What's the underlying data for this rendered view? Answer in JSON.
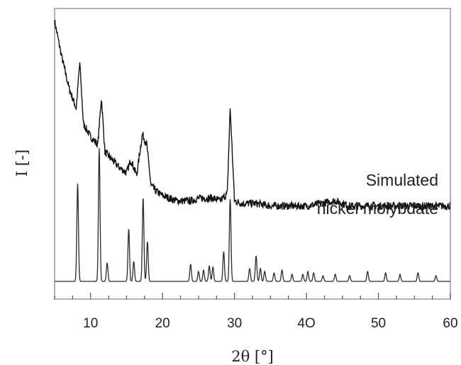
{
  "chart_data": {
    "type": "line",
    "xlabel": "2θ [°]",
    "ylabel": "I [-]",
    "xlim": [
      5,
      60
    ],
    "xticks": [
      10,
      20,
      30,
      40,
      50,
      60
    ],
    "x_tick_labels": [
      "10",
      "20",
      "30",
      "4O",
      "50",
      "60"
    ],
    "yticks_shown": false,
    "grid": false,
    "annotations": [
      {
        "text": "Simulated"
      },
      {
        "text": "nickel molybdate"
      }
    ],
    "series": [
      {
        "description": "measured pattern (upper, noisy)",
        "x": [
          5,
          6,
          7,
          8,
          8.5,
          9,
          10,
          11,
          11.5,
          12,
          13,
          14,
          15,
          15.6,
          16.4,
          17.2,
          17.8,
          18.4,
          19,
          20,
          21,
          22,
          23,
          24,
          25,
          26,
          27,
          28,
          29,
          29.4,
          30,
          31,
          33,
          35,
          37,
          40,
          44,
          46,
          50,
          55,
          60
        ],
        "y_rel": [
          1.0,
          0.86,
          0.74,
          0.66,
          0.84,
          0.6,
          0.55,
          0.52,
          0.7,
          0.49,
          0.46,
          0.43,
          0.41,
          0.46,
          0.4,
          0.56,
          0.52,
          0.36,
          0.34,
          0.32,
          0.31,
          0.3,
          0.3,
          0.3,
          0.31,
          0.31,
          0.31,
          0.3,
          0.33,
          0.66,
          0.3,
          0.29,
          0.29,
          0.28,
          0.28,
          0.28,
          0.3,
          0.28,
          0.28,
          0.28,
          0.28
        ]
      },
      {
        "name": "Simulated nickel molybdate",
        "baseline_rel": 0.0,
        "peaks": [
          {
            "x": 8.2,
            "h": 0.69
          },
          {
            "x": 11.2,
            "h": 0.94
          },
          {
            "x": 12.3,
            "h": 0.13
          },
          {
            "x": 15.3,
            "h": 0.37
          },
          {
            "x": 16.0,
            "h": 0.14
          },
          {
            "x": 17.3,
            "h": 0.59
          },
          {
            "x": 17.9,
            "h": 0.28
          },
          {
            "x": 23.9,
            "h": 0.12
          },
          {
            "x": 25.0,
            "h": 0.07
          },
          {
            "x": 25.7,
            "h": 0.08
          },
          {
            "x": 26.5,
            "h": 0.11
          },
          {
            "x": 27.0,
            "h": 0.1
          },
          {
            "x": 28.5,
            "h": 0.21
          },
          {
            "x": 29.4,
            "h": 0.58
          },
          {
            "x": 32.1,
            "h": 0.09
          },
          {
            "x": 33.0,
            "h": 0.18
          },
          {
            "x": 33.6,
            "h": 0.09
          },
          {
            "x": 34.2,
            "h": 0.07
          },
          {
            "x": 35.5,
            "h": 0.06
          },
          {
            "x": 36.6,
            "h": 0.08
          },
          {
            "x": 38.0,
            "h": 0.05
          },
          {
            "x": 39.5,
            "h": 0.05
          },
          {
            "x": 40.2,
            "h": 0.07
          },
          {
            "x": 41.0,
            "h": 0.06
          },
          {
            "x": 42.3,
            "h": 0.04
          },
          {
            "x": 44.0,
            "h": 0.05
          },
          {
            "x": 46.0,
            "h": 0.04
          },
          {
            "x": 48.5,
            "h": 0.07
          },
          {
            "x": 51.0,
            "h": 0.06
          },
          {
            "x": 53.0,
            "h": 0.05
          },
          {
            "x": 55.5,
            "h": 0.06
          },
          {
            "x": 58.0,
            "h": 0.04
          }
        ]
      }
    ]
  }
}
